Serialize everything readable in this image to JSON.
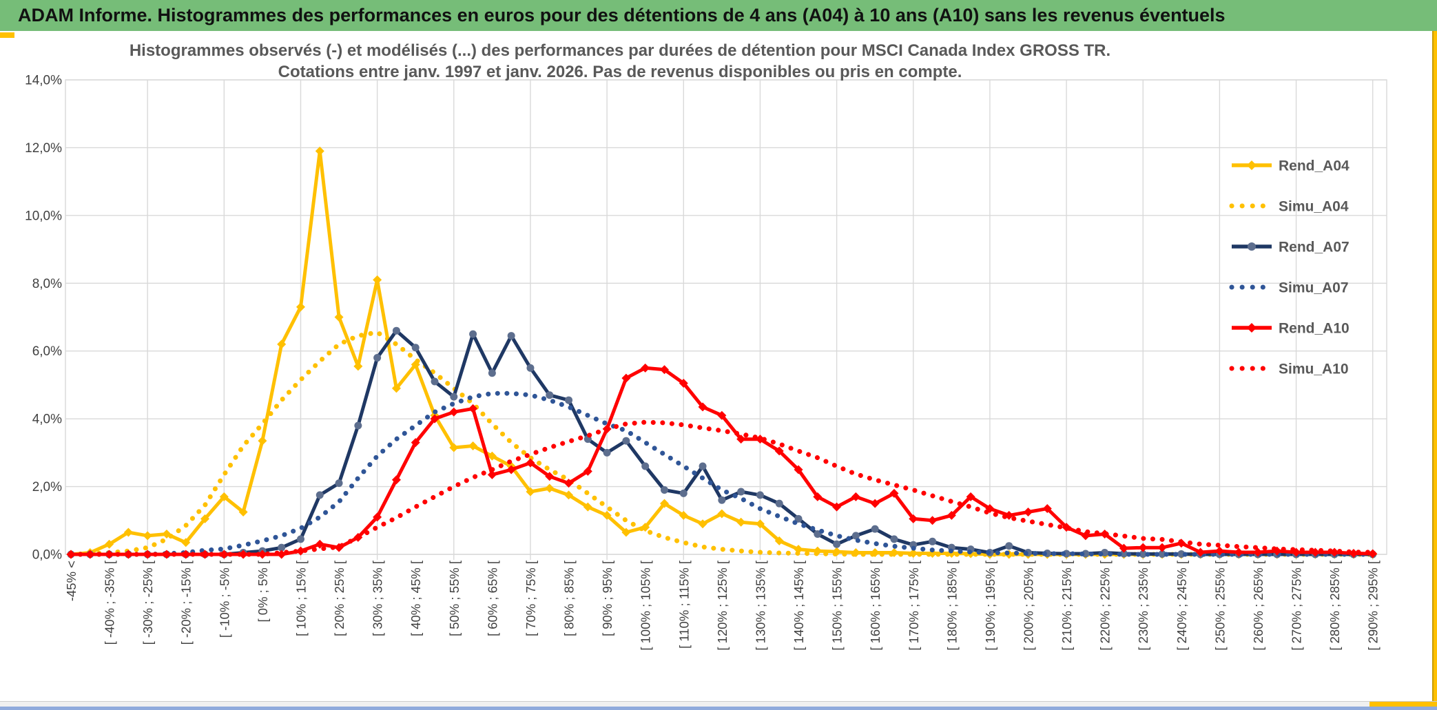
{
  "header": {
    "title": "ADAM Informe. Histogrammes des performances en euros pour des détentions de 4 ans (A04) à 10 ans (A10) sans les revenus éventuels"
  },
  "chart_data": {
    "type": "line",
    "title_line1": "Histogrammes observés (-) et modélisés (...) des performances par durées de détention pour MSCI Canada Index GROSS TR.",
    "title_line2": "Cotations entre janv. 1997 et janv. 2026. Pas de revenus disponibles ou pris en compte.",
    "xlabel": "",
    "ylabel": "",
    "ylim": [
      0,
      14
    ],
    "grid": true,
    "legend_position": "right-inside",
    "y_ticks": [
      "14,0%",
      "12,0%",
      "10,0%",
      "8,0%",
      "6,0%",
      "4,0%",
      "2,0%",
      "0,0%"
    ],
    "categories": [
      "-45% <",
      "",
      "[ -40% ; -35% [",
      "",
      "[ -30% ; -25% [",
      "",
      "[ -20% ; -15% [",
      "",
      "[ -10% ; -5% [",
      "",
      "[ 0% ; 5% [",
      "",
      "[ 10% ; 15% [",
      "",
      "[ 20% ; 25% [",
      "",
      "[ 30% ; 35% [",
      "",
      "[ 40% ; 45% [",
      "",
      "[ 50% ; 55% [",
      "",
      "[ 60% ; 65% [",
      "",
      "[ 70% ; 75% [",
      "",
      "[ 80% ; 85% [",
      "",
      "[ 90% ; 95% [",
      "",
      "[ 100% ; 105% [",
      "",
      "[ 110% ; 115% [",
      "",
      "[ 120% ; 125% [",
      "",
      "[ 130% ; 135% [",
      "",
      "[ 140% ; 145% [",
      "",
      "[ 150% ; 155% [",
      "",
      "[ 160% ; 165% [",
      "",
      "[ 170% ; 175% [",
      "",
      "[ 180% ; 185% [",
      "",
      "[ 190% ; 195% [",
      "",
      "[ 200% ; 205% [",
      "",
      "[ 210% ; 215% [",
      "",
      "[ 220% ; 225% [",
      "",
      "[ 230% ; 235% [",
      "",
      "[ 240% ; 245% [",
      "",
      "[ 250% ; 255% [",
      "",
      "[ 260% ; 265% [",
      "",
      "[ 270% ; 275% [",
      "",
      "[ 280% ; 285% [",
      "",
      "[ 290% ; 295% ["
    ],
    "series": [
      {
        "name": "Rend_A04",
        "style": "solid",
        "color": "#FFC000",
        "marker": "diamond",
        "marker_color": "#FFC000",
        "values": [
          0,
          0.05,
          0.3,
          0.65,
          0.55,
          0.6,
          0.35,
          1.05,
          1.7,
          1.25,
          3.35,
          6.2,
          7.3,
          11.9,
          7,
          5.55,
          8.1,
          4.9,
          5.6,
          4.1,
          3.15,
          3.2,
          2.9,
          2.6,
          1.85,
          1.95,
          1.75,
          1.4,
          1.15,
          0.65,
          0.8,
          1.5,
          1.15,
          0.9,
          1.2,
          0.95,
          0.9,
          0.4,
          0.15,
          0.1,
          0.08,
          0.05,
          0.05,
          0.05,
          0.03,
          0.03,
          0.03,
          0.02,
          0,
          0,
          0,
          0,
          0,
          0,
          0,
          0,
          0,
          0,
          0,
          0,
          0,
          0,
          0,
          0,
          0,
          0,
          0,
          0,
          0
        ]
      },
      {
        "name": "Simu_A04",
        "style": "dotted",
        "color": "#FFC000",
        "marker": "none",
        "values": [
          0,
          0.02,
          0.05,
          0.1,
          0.2,
          0.45,
          0.85,
          1.45,
          2.35,
          3.2,
          3.85,
          4.55,
          5.15,
          5.7,
          6.2,
          6.45,
          6.55,
          6.2,
          5.75,
          5.35,
          4.9,
          4.45,
          3.85,
          3.3,
          2.85,
          2.5,
          2.2,
          1.8,
          1.4,
          1,
          0.7,
          0.5,
          0.35,
          0.22,
          0.15,
          0.1,
          0.06,
          0.04,
          0.03,
          0.02,
          0.01,
          0,
          0,
          0,
          0,
          0,
          0,
          0,
          0,
          0,
          0,
          0,
          0,
          0,
          0,
          0,
          0,
          0,
          0,
          0,
          0,
          0,
          0,
          0,
          0,
          0,
          0,
          0,
          0
        ]
      },
      {
        "name": "Rend_A07",
        "style": "solid",
        "color": "#1F3864",
        "marker": "circle",
        "marker_color": "#5D6E8E",
        "values": [
          0,
          0,
          0,
          0,
          0,
          0,
          0,
          0,
          0,
          0.05,
          0.1,
          0.2,
          0.45,
          1.75,
          2.1,
          3.8,
          5.8,
          6.6,
          6.1,
          5.1,
          4.65,
          6.5,
          5.35,
          6.45,
          5.5,
          4.7,
          4.55,
          3.4,
          3,
          3.35,
          2.6,
          1.9,
          1.8,
          2.6,
          1.6,
          1.85,
          1.75,
          1.5,
          1.05,
          0.6,
          0.3,
          0.55,
          0.75,
          0.45,
          0.28,
          0.38,
          0.2,
          0.15,
          0.05,
          0.25,
          0.05,
          0.03,
          0.02,
          0.02,
          0.05,
          0.02,
          0.01,
          0.01,
          0.01,
          0,
          0,
          0,
          0,
          0,
          0,
          0,
          0,
          0,
          0
        ]
      },
      {
        "name": "Simu_A07",
        "style": "dotted",
        "color": "#2F5597",
        "marker": "none",
        "values": [
          0,
          0,
          0,
          0,
          0,
          0.02,
          0.05,
          0.12,
          0.16,
          0.27,
          0.4,
          0.55,
          0.77,
          1.1,
          1.55,
          2.25,
          2.9,
          3.4,
          3.8,
          4.2,
          4.45,
          4.65,
          4.75,
          4.75,
          4.7,
          4.55,
          4.35,
          4.1,
          3.85,
          3.65,
          3.3,
          2.95,
          2.6,
          2.25,
          1.9,
          1.65,
          1.35,
          1.12,
          0.9,
          0.72,
          0.55,
          0.42,
          0.32,
          0.24,
          0.18,
          0.13,
          0.1,
          0.07,
          0.05,
          0.04,
          0.03,
          0.02,
          0.02,
          0.01,
          0.01,
          0,
          0,
          0,
          0,
          0,
          0,
          0,
          0,
          0,
          0,
          0,
          0,
          0,
          0
        ]
      },
      {
        "name": "Rend_A10",
        "style": "solid",
        "color": "#FF0000",
        "marker": "diamond",
        "marker_color": "#FF0000",
        "values": [
          0,
          0,
          0,
          0,
          0,
          0,
          0,
          0,
          0,
          0,
          0,
          0,
          0.1,
          0.3,
          0.2,
          0.5,
          1.1,
          2.2,
          3.3,
          4,
          4.2,
          4.3,
          2.35,
          2.5,
          2.7,
          2.3,
          2.1,
          2.45,
          3.7,
          5.2,
          5.5,
          5.45,
          5.05,
          4.35,
          4.1,
          3.4,
          3.4,
          3.05,
          2.5,
          1.7,
          1.4,
          1.7,
          1.5,
          1.8,
          1.05,
          1,
          1.15,
          1.7,
          1.35,
          1.15,
          1.25,
          1.35,
          0.8,
          0.55,
          0.6,
          0.18,
          0.2,
          0.2,
          0.33,
          0.06,
          0.1,
          0.06,
          0.06,
          0.1,
          0.06,
          0.06,
          0.06,
          0.03,
          0.02
        ]
      },
      {
        "name": "Simu_A10",
        "style": "dotted",
        "color": "#FF0000",
        "marker": "none",
        "values": [
          0,
          0,
          0,
          0,
          0,
          0,
          0,
          0,
          0,
          0,
          0,
          0.05,
          0.1,
          0.16,
          0.22,
          0.5,
          0.8,
          1.08,
          1.4,
          1.7,
          2,
          2.27,
          2.5,
          2.75,
          2.95,
          3.15,
          3.33,
          3.5,
          3.7,
          3.85,
          3.9,
          3.88,
          3.82,
          3.73,
          3.65,
          3.55,
          3.43,
          3.26,
          3.05,
          2.85,
          2.6,
          2.37,
          2.2,
          2.05,
          1.9,
          1.73,
          1.56,
          1.4,
          1.22,
          1.08,
          0.98,
          0.88,
          0.78,
          0.67,
          0.61,
          0.54,
          0.47,
          0.44,
          0.37,
          0.3,
          0.27,
          0.23,
          0.2,
          0.16,
          0.14,
          0.12,
          0.1,
          0.07,
          0.06
        ]
      }
    ],
    "colors": {
      "header_green": "#76BD78",
      "accent_gold": "#FFC000",
      "gridline": "#D9D9D9",
      "axis_text": "#404040",
      "title_text": "#595959",
      "bottom_blue": "#8FAADC"
    }
  }
}
